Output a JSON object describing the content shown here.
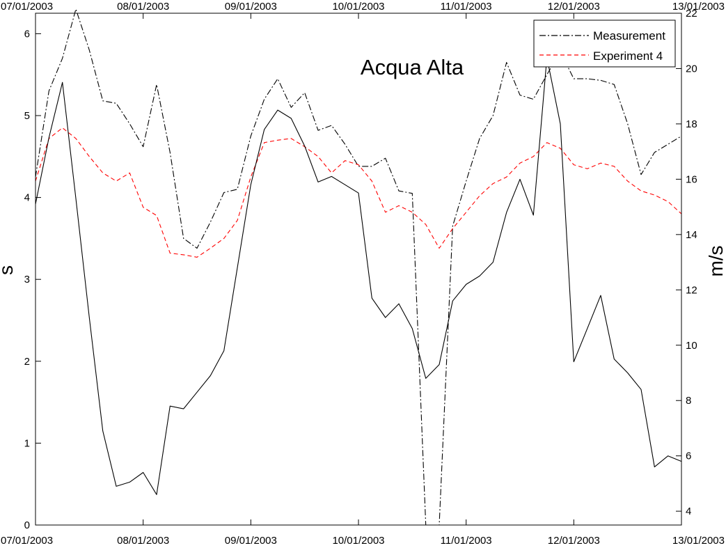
{
  "chart_data": {
    "type": "line",
    "title": "Acqua Alta",
    "x_axis": {
      "type": "date",
      "range": [
        "07/01/2003",
        "13/01/2003"
      ],
      "ticks": [
        "07/01/2003",
        "08/01/2003",
        "09/01/2003",
        "10/01/2003",
        "11/01/2003",
        "12/01/2003",
        "13/01/2003"
      ],
      "ticks_repeated_top": true
    },
    "y_left": {
      "label": "s",
      "range": [
        0,
        6.25
      ],
      "ticks": [
        0,
        1,
        2,
        3,
        4,
        5,
        6
      ]
    },
    "y_right": {
      "label": "m/s",
      "range": [
        3.5,
        22
      ],
      "ticks": [
        4,
        6,
        8,
        10,
        12,
        14,
        16,
        18,
        20,
        22
      ]
    },
    "legend": {
      "placement": "top-right",
      "entries": [
        {
          "series": "Measurement",
          "label": "Measurement"
        },
        {
          "series": "Experiment 4",
          "label": "Experiment 4"
        }
      ]
    },
    "grid": false,
    "series": [
      {
        "name": "Measurement",
        "axis": "left",
        "color": "#000000",
        "style": "dash-dot",
        "x": [
          "07/01/2003 00:00",
          "07/01/2003 03:00",
          "07/01/2003 06:00",
          "07/01/2003 09:00",
          "07/01/2003 12:00",
          "07/01/2003 15:00",
          "07/01/2003 18:00",
          "07/01/2003 21:00",
          "08/01/2003 00:00",
          "08/01/2003 03:00",
          "08/01/2003 06:00",
          "08/01/2003 09:00",
          "08/01/2003 12:00",
          "08/01/2003 15:00",
          "08/01/2003 18:00",
          "08/01/2003 21:00",
          "09/01/2003 00:00",
          "09/01/2003 03:00",
          "09/01/2003 06:00",
          "09/01/2003 09:00",
          "09/01/2003 12:00",
          "09/01/2003 15:00",
          "09/01/2003 18:00",
          "09/01/2003 21:00",
          "10/01/2003 00:00",
          "10/01/2003 03:00",
          "10/01/2003 06:00",
          "10/01/2003 09:00",
          "10/01/2003 12:00",
          "10/01/2003 15:00",
          "10/01/2003 18:00",
          "10/01/2003 21:00",
          "11/01/2003 00:00",
          "11/01/2003 03:00",
          "11/01/2003 06:00",
          "11/01/2003 09:00",
          "11/01/2003 12:00",
          "11/01/2003 15:00",
          "11/01/2003 18:00",
          "11/01/2003 21:00",
          "12/01/2003 00:00",
          "12/01/2003 03:00",
          "12/01/2003 06:00",
          "12/01/2003 09:00",
          "12/01/2003 12:00",
          "12/01/2003 15:00",
          "12/01/2003 18:00",
          "12/01/2003 21:00",
          "13/01/2003 00:00"
        ],
        "values": [
          4.25,
          5.3,
          5.7,
          6.3,
          5.8,
          5.18,
          5.15,
          4.9,
          4.62,
          5.38,
          4.55,
          3.5,
          3.38,
          3.7,
          4.06,
          4.1,
          4.75,
          5.2,
          5.45,
          5.1,
          5.28,
          4.82,
          4.88,
          4.65,
          4.38,
          4.38,
          4.48,
          4.08,
          4.05,
          0.0,
          0.0,
          3.65,
          4.2,
          4.72,
          5.0,
          5.65,
          5.25,
          5.2,
          5.5,
          5.78,
          5.45,
          5.45,
          5.43,
          5.38,
          4.9,
          4.28,
          4.55,
          4.65,
          4.75
        ]
      },
      {
        "name": "Experiment 4",
        "axis": "left",
        "color": "#ff0000",
        "style": "dashed",
        "x": [
          "07/01/2003 00:00",
          "07/01/2003 03:00",
          "07/01/2003 06:00",
          "07/01/2003 09:00",
          "07/01/2003 12:00",
          "07/01/2003 15:00",
          "07/01/2003 18:00",
          "07/01/2003 21:00",
          "08/01/2003 00:00",
          "08/01/2003 03:00",
          "08/01/2003 06:00",
          "08/01/2003 09:00",
          "08/01/2003 12:00",
          "08/01/2003 15:00",
          "08/01/2003 18:00",
          "08/01/2003 21:00",
          "09/01/2003 00:00",
          "09/01/2003 03:00",
          "09/01/2003 06:00",
          "09/01/2003 09:00",
          "09/01/2003 12:00",
          "09/01/2003 15:00",
          "09/01/2003 18:00",
          "09/01/2003 21:00",
          "10/01/2003 00:00",
          "10/01/2003 03:00",
          "10/01/2003 06:00",
          "10/01/2003 09:00",
          "10/01/2003 12:00",
          "10/01/2003 15:00",
          "10/01/2003 18:00",
          "10/01/2003 21:00",
          "11/01/2003 00:00",
          "11/01/2003 03:00",
          "11/01/2003 06:00",
          "11/01/2003 09:00",
          "11/01/2003 12:00",
          "11/01/2003 15:00",
          "11/01/2003 18:00",
          "11/01/2003 21:00",
          "12/01/2003 00:00",
          "12/01/2003 03:00",
          "12/01/2003 06:00",
          "12/01/2003 09:00",
          "12/01/2003 12:00",
          "12/01/2003 15:00",
          "12/01/2003 18:00",
          "12/01/2003 21:00",
          "13/01/2003 00:00"
        ],
        "values": [
          4.2,
          4.72,
          4.85,
          4.72,
          4.5,
          4.3,
          4.2,
          4.3,
          3.88,
          3.78,
          3.32,
          3.3,
          3.27,
          3.38,
          3.5,
          3.72,
          4.25,
          4.67,
          4.7,
          4.72,
          4.62,
          4.5,
          4.3,
          4.45,
          4.4,
          4.2,
          3.82,
          3.9,
          3.82,
          3.67,
          3.38,
          3.62,
          3.82,
          4.02,
          4.17,
          4.25,
          4.42,
          4.5,
          4.67,
          4.6,
          4.4,
          4.35,
          4.42,
          4.38,
          4.2,
          4.08,
          4.03,
          3.95,
          3.8
        ]
      },
      {
        "name": "",
        "axis": "right",
        "color": "#000000",
        "style": "solid",
        "x": [
          "07/01/2003 00:00",
          "07/01/2003 03:00",
          "07/01/2003 06:00",
          "07/01/2003 09:00",
          "07/01/2003 12:00",
          "07/01/2003 15:00",
          "07/01/2003 18:00",
          "07/01/2003 21:00",
          "08/01/2003 00:00",
          "08/01/2003 03:00",
          "08/01/2003 06:00",
          "08/01/2003 09:00",
          "08/01/2003 12:00",
          "08/01/2003 15:00",
          "08/01/2003 18:00",
          "08/01/2003 21:00",
          "09/01/2003 00:00",
          "09/01/2003 03:00",
          "09/01/2003 06:00",
          "09/01/2003 09:00",
          "09/01/2003 12:00",
          "09/01/2003 15:00",
          "09/01/2003 18:00",
          "09/01/2003 21:00",
          "10/01/2003 00:00",
          "10/01/2003 03:00",
          "10/01/2003 06:00",
          "10/01/2003 09:00",
          "10/01/2003 12:00",
          "10/01/2003 15:00",
          "10/01/2003 18:00",
          "10/01/2003 21:00",
          "11/01/2003 00:00",
          "11/01/2003 03:00",
          "11/01/2003 06:00",
          "11/01/2003 09:00",
          "11/01/2003 12:00",
          "11/01/2003 15:00",
          "11/01/2003 18:00",
          "11/01/2003 21:00",
          "12/01/2003 00:00",
          "12/01/2003 03:00",
          "12/01/2003 06:00",
          "12/01/2003 09:00",
          "12/01/2003 12:00",
          "12/01/2003 15:00",
          "12/01/2003 18:00",
          "12/01/2003 21:00",
          "13/01/2003 00:00"
        ],
        "values": [
          15.1,
          17.5,
          19.5,
          15.3,
          11.0,
          6.9,
          4.9,
          5.05,
          5.4,
          4.6,
          7.8,
          7.7,
          8.3,
          8.9,
          9.8,
          12.8,
          15.8,
          17.8,
          18.5,
          18.2,
          17.2,
          15.9,
          16.1,
          15.8,
          15.5,
          11.7,
          11.0,
          11.5,
          10.6,
          8.8,
          9.3,
          11.6,
          12.2,
          12.5,
          13.0,
          14.8,
          16.0,
          14.7,
          20.4,
          18.0,
          9.4,
          10.6,
          11.8,
          9.5,
          9.0,
          8.4,
          5.6,
          6.0,
          5.8
        ]
      }
    ]
  }
}
